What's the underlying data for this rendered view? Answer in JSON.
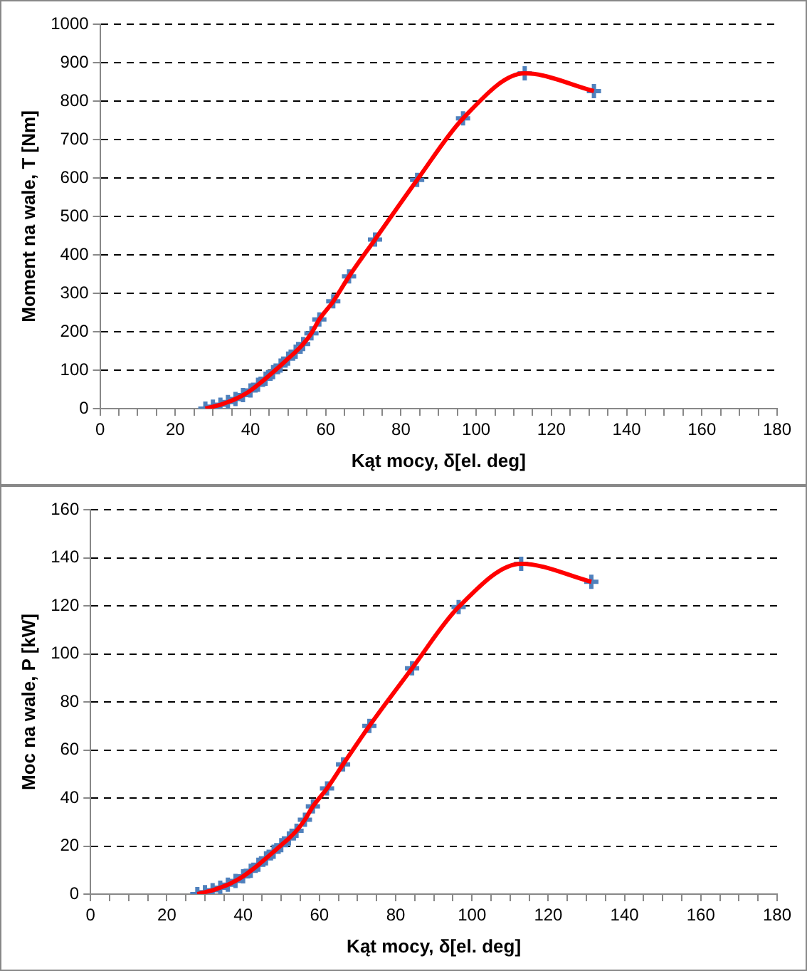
{
  "chart_data": [
    {
      "type": "line",
      "xlabel": "Kąt mocy, δ[el. deg]",
      "ylabel": "Moment na wale, T [Nm]",
      "x": [
        28,
        30,
        32,
        34,
        36,
        38,
        40,
        42,
        44,
        46,
        48,
        50,
        52,
        54,
        56.2,
        58.3,
        62,
        66.2,
        73.1,
        84.3,
        96.5,
        112.9,
        131.3
      ],
      "series": [
        {
          "type": "line",
          "color": "#ff0000",
          "marker": "none",
          "line_style": "solid",
          "values": [
            0,
            5,
            10,
            17,
            25,
            35,
            47,
            62,
            78,
            95,
            112,
            130,
            148,
            168,
            196,
            232,
            279,
            344,
            440,
            595,
            755,
            872,
            826
          ]
        },
        {
          "type": "scatter",
          "color": "#4f81bd",
          "marker": "cross",
          "values": [
            0,
            5,
            10,
            17,
            25,
            35,
            47,
            62,
            78,
            95,
            112,
            130,
            148,
            168,
            196,
            232,
            279,
            344,
            440,
            595,
            755,
            872,
            826
          ]
        }
      ],
      "xlim": [
        0,
        180
      ],
      "xticks": [
        0,
        {
          "value": 5,
          "label": null
        },
        {
          "value": 10,
          "label": null
        },
        {
          "value": 15,
          "label": null
        },
        20,
        {
          "value": 25,
          "label": null
        },
        {
          "value": 30,
          "label": null
        },
        {
          "value": 35,
          "label": null
        },
        40,
        {
          "value": 45,
          "label": null
        },
        {
          "value": 50,
          "label": null
        },
        {
          "value": 55,
          "label": null
        },
        60,
        {
          "value": 65,
          "label": null
        },
        {
          "value": 70,
          "label": null
        },
        {
          "value": 75,
          "label": null
        },
        80,
        {
          "value": 85,
          "label": null
        },
        {
          "value": 90,
          "label": null
        },
        {
          "value": 95,
          "label": null
        },
        100,
        {
          "value": 105,
          "label": null
        },
        {
          "value": 110,
          "label": null
        },
        {
          "value": 115,
          "label": null
        },
        120,
        {
          "value": 125,
          "label": null
        },
        {
          "value": 130,
          "label": null
        },
        {
          "value": 135,
          "label": null
        },
        140,
        {
          "value": 145,
          "label": null
        },
        {
          "value": 150,
          "label": null
        },
        {
          "value": 155,
          "label": null
        },
        160,
        {
          "value": 165,
          "label": null
        },
        {
          "value": 170,
          "label": null
        },
        {
          "value": 175,
          "label": null
        },
        180
      ],
      "ylim": [
        0,
        1000
      ],
      "yticks": [
        0,
        100,
        200,
        300,
        400,
        500,
        600,
        700,
        800,
        900,
        1000
      ],
      "grid": "y",
      "legend": false
    },
    {
      "type": "line",
      "xlabel": "Kąt mocy, δ[el. deg]",
      "ylabel": "Moc na wale, P [kW]",
      "x": [
        28,
        30,
        32,
        34,
        36,
        38,
        40,
        42,
        44,
        46,
        48,
        50,
        52,
        54,
        56.2,
        58.3,
        62,
        66.2,
        73.1,
        84.3,
        96.5,
        112.9,
        131.3
      ],
      "series": [
        {
          "type": "line",
          "color": "#ff0000",
          "marker": "none",
          "line_style": "solid",
          "values": [
            0,
            0.8,
            1.6,
            2.7,
            3.9,
            5.5,
            7.4,
            9.7,
            12.2,
            14.9,
            17.6,
            20.4,
            23.2,
            26.4,
            31,
            36.5,
            44,
            54,
            70,
            94,
            119.5,
            137.5,
            130
          ]
        },
        {
          "type": "scatter",
          "color": "#4f81bd",
          "marker": "cross",
          "values": [
            0,
            0.8,
            1.6,
            2.7,
            3.9,
            5.5,
            7.4,
            9.7,
            12.2,
            14.9,
            17.6,
            20.4,
            23.2,
            26.4,
            31,
            36.5,
            44,
            54,
            70,
            94,
            119.5,
            137.5,
            130
          ]
        }
      ],
      "xlim": [
        0,
        180
      ],
      "xticks": [
        0,
        {
          "value": 5,
          "label": null
        },
        {
          "value": 10,
          "label": null
        },
        {
          "value": 15,
          "label": null
        },
        20,
        {
          "value": 25,
          "label": null
        },
        {
          "value": 30,
          "label": null
        },
        {
          "value": 35,
          "label": null
        },
        40,
        {
          "value": 45,
          "label": null
        },
        {
          "value": 50,
          "label": null
        },
        {
          "value": 55,
          "label": null
        },
        60,
        {
          "value": 65,
          "label": null
        },
        {
          "value": 70,
          "label": null
        },
        {
          "value": 75,
          "label": null
        },
        80,
        {
          "value": 85,
          "label": null
        },
        {
          "value": 90,
          "label": null
        },
        {
          "value": 95,
          "label": null
        },
        100,
        {
          "value": 105,
          "label": null
        },
        {
          "value": 110,
          "label": null
        },
        {
          "value": 115,
          "label": null
        },
        120,
        {
          "value": 125,
          "label": null
        },
        {
          "value": 130,
          "label": null
        },
        {
          "value": 135,
          "label": null
        },
        140,
        {
          "value": 145,
          "label": null
        },
        {
          "value": 150,
          "label": null
        },
        {
          "value": 155,
          "label": null
        },
        160,
        {
          "value": 165,
          "label": null
        },
        {
          "value": 170,
          "label": null
        },
        {
          "value": 175,
          "label": null
        },
        180
      ],
      "ylim": [
        0,
        160
      ],
      "yticks": [
        0,
        20,
        40,
        60,
        80,
        100,
        120,
        140,
        160
      ],
      "grid": "y",
      "legend": false
    }
  ]
}
